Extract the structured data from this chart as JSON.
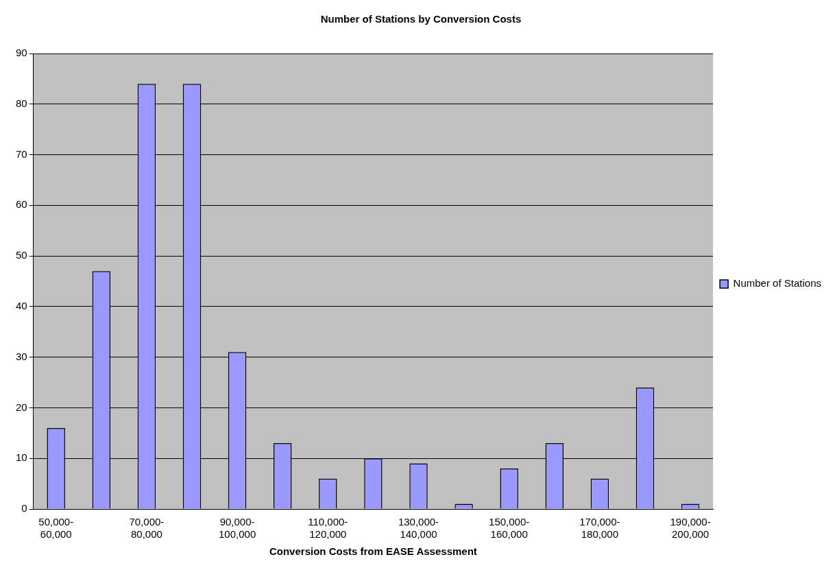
{
  "chart_data": {
    "type": "bar",
    "title": "Number of Stations by Conversion Costs",
    "xlabel": "Conversion Costs from EASE Assessment",
    "categories": [
      "50,000-60,000",
      null,
      "70,000-80,000",
      null,
      "90,000-100,000",
      null,
      "110,000-120,000",
      null,
      "130,000-140,000",
      null,
      "150,000-160,000",
      null,
      "170,000-180,000",
      null,
      "190,000-200,000"
    ],
    "series": [
      {
        "name": "Number of Stations",
        "color": "#9999ff",
        "values": [
          16,
          47,
          84,
          84,
          31,
          13,
          6,
          10,
          9,
          1,
          8,
          13,
          6,
          24,
          1
        ]
      }
    ],
    "ylim": [
      0,
      90
    ],
    "yticks": [
      0,
      10,
      20,
      30,
      40,
      50,
      60,
      70,
      80,
      90
    ],
    "grid": "y",
    "legend": "right"
  }
}
